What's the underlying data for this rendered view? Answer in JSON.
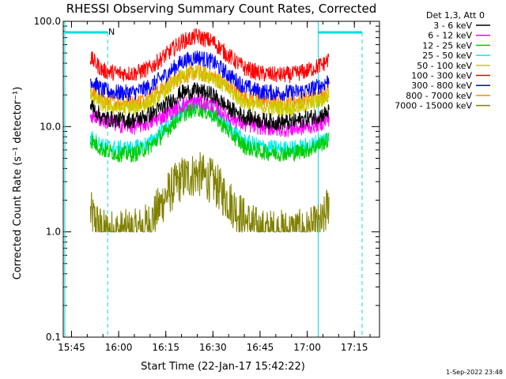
{
  "chart_data": {
    "type": "line",
    "title": "RHESSI Observing Summary Count Rates, Corrected",
    "xlabel": "Start Time (22-Jan-17 15:42:22)",
    "ylabel": "Corrected Count Rate (s⁻¹ detector⁻¹)",
    "x_scale": "time",
    "y_scale": "log",
    "xlim": [
      "15:42:22",
      "17:23:00"
    ],
    "ylim": [
      0.1,
      100.0
    ],
    "x_ticks": [
      "15:45",
      "16:00",
      "16:15",
      "16:30",
      "16:45",
      "17:00",
      "17:15"
    ],
    "y_ticks": [
      "0.1",
      "1.0",
      "10.0",
      "100.0"
    ],
    "grid": false,
    "legend": {
      "title": "Det 1,3, Att 0",
      "placement": "outside-right"
    },
    "annotations": {
      "night_marker": "N",
      "timestamp": "1-Sep-2022 23:48"
    },
    "data_gaps": [
      {
        "start": "15:42:22",
        "end": "15:56:30"
      },
      {
        "start": "17:03:30",
        "end": "17:17:40"
      }
    ],
    "x": [
      "15:51",
      "15:55",
      "16:00",
      "16:05",
      "16:10",
      "16:15",
      "16:20",
      "16:25",
      "16:30",
      "16:35",
      "16:40",
      "16:45",
      "16:50",
      "16:55",
      "17:00",
      "17:05",
      "17:07"
    ],
    "series": [
      {
        "name": "3 - 6 keV",
        "color": "#000000",
        "values": [
          16,
          12,
          11.5,
          11.5,
          13,
          16,
          21,
          22,
          20,
          15,
          12.5,
          11.5,
          11,
          11,
          12,
          13,
          14
        ]
      },
      {
        "name": "6 - 12 keV",
        "color": "#ff00ff",
        "values": [
          13,
          11.5,
          10.5,
          10,
          11,
          13,
          16,
          17.5,
          16,
          12.5,
          10.5,
          10,
          9.5,
          9.5,
          10,
          11,
          12
        ]
      },
      {
        "name": "12 - 25 keV",
        "color": "#00cc00",
        "values": [
          7.5,
          6,
          5.5,
          5.5,
          6.5,
          9,
          13,
          15,
          13,
          9,
          6.5,
          5.8,
          5.6,
          5.6,
          6,
          7,
          7.5
        ]
      },
      {
        "name": "25 - 50 keV",
        "color": "#00eeee",
        "values": [
          8,
          6.5,
          6.2,
          6.2,
          7,
          10,
          14,
          16,
          14,
          10,
          7.2,
          6.5,
          6.2,
          6.2,
          6.5,
          7.5,
          8
        ]
      },
      {
        "name": "50 - 100 keV",
        "color": "#cccc00",
        "values": [
          20,
          16,
          15,
          15,
          17,
          22,
          30,
          33,
          30,
          22,
          17,
          15.5,
          15,
          15,
          16,
          18,
          20
        ]
      },
      {
        "name": "100 - 300 keV",
        "color": "#ff0000",
        "values": [
          45,
          34,
          32,
          32,
          36,
          48,
          64,
          72,
          64,
          47,
          36,
          32,
          31,
          31,
          34,
          39,
          44
        ]
      },
      {
        "name": "300 - 800 keV",
        "color": "#0000ff",
        "values": [
          28,
          22,
          21,
          21,
          24,
          31,
          41,
          46,
          41,
          31,
          24,
          21.5,
          21,
          21,
          22,
          25,
          28
        ]
      },
      {
        "name": "800 - 7000 keV",
        "color": "#ff8800",
        "values": [
          22,
          17.5,
          17,
          17,
          19,
          24,
          30,
          33,
          30,
          24,
          19,
          17.5,
          17,
          17,
          18,
          20,
          22
        ]
      },
      {
        "name": "7000 - 15000 keV",
        "color": "#808000",
        "values": [
          1.5,
          1.0,
          1.0,
          1.0,
          1.2,
          2.2,
          3.2,
          3.6,
          3.0,
          2.0,
          1.3,
          1.0,
          1.0,
          1.0,
          1.0,
          1.2,
          2.0
        ]
      }
    ]
  }
}
